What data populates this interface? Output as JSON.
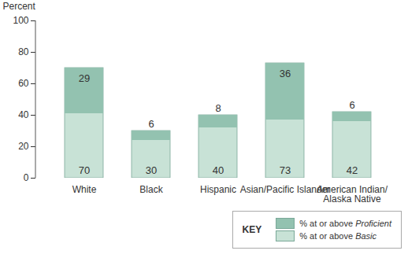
{
  "chart_data": {
    "type": "bar",
    "ylabel": "Percent",
    "categories": [
      "White",
      "Black",
      "Hispanic",
      "Asian/Pacific Islander",
      "American Indian/Alaska Native"
    ],
    "series": [
      {
        "name": "% at or above Proficient",
        "color": "#93c2b0",
        "values": [
          29,
          6,
          8,
          36,
          6
        ]
      },
      {
        "name": "% at or above Basic",
        "color": "#c8e2d6",
        "values": [
          70,
          30,
          40,
          73,
          42
        ]
      }
    ],
    "ylim": [
      0,
      100
    ],
    "yticks": [
      0,
      20,
      40,
      60,
      80,
      100
    ],
    "data_labels": true,
    "legend": "bottom-right",
    "legend_title": "KEY"
  }
}
